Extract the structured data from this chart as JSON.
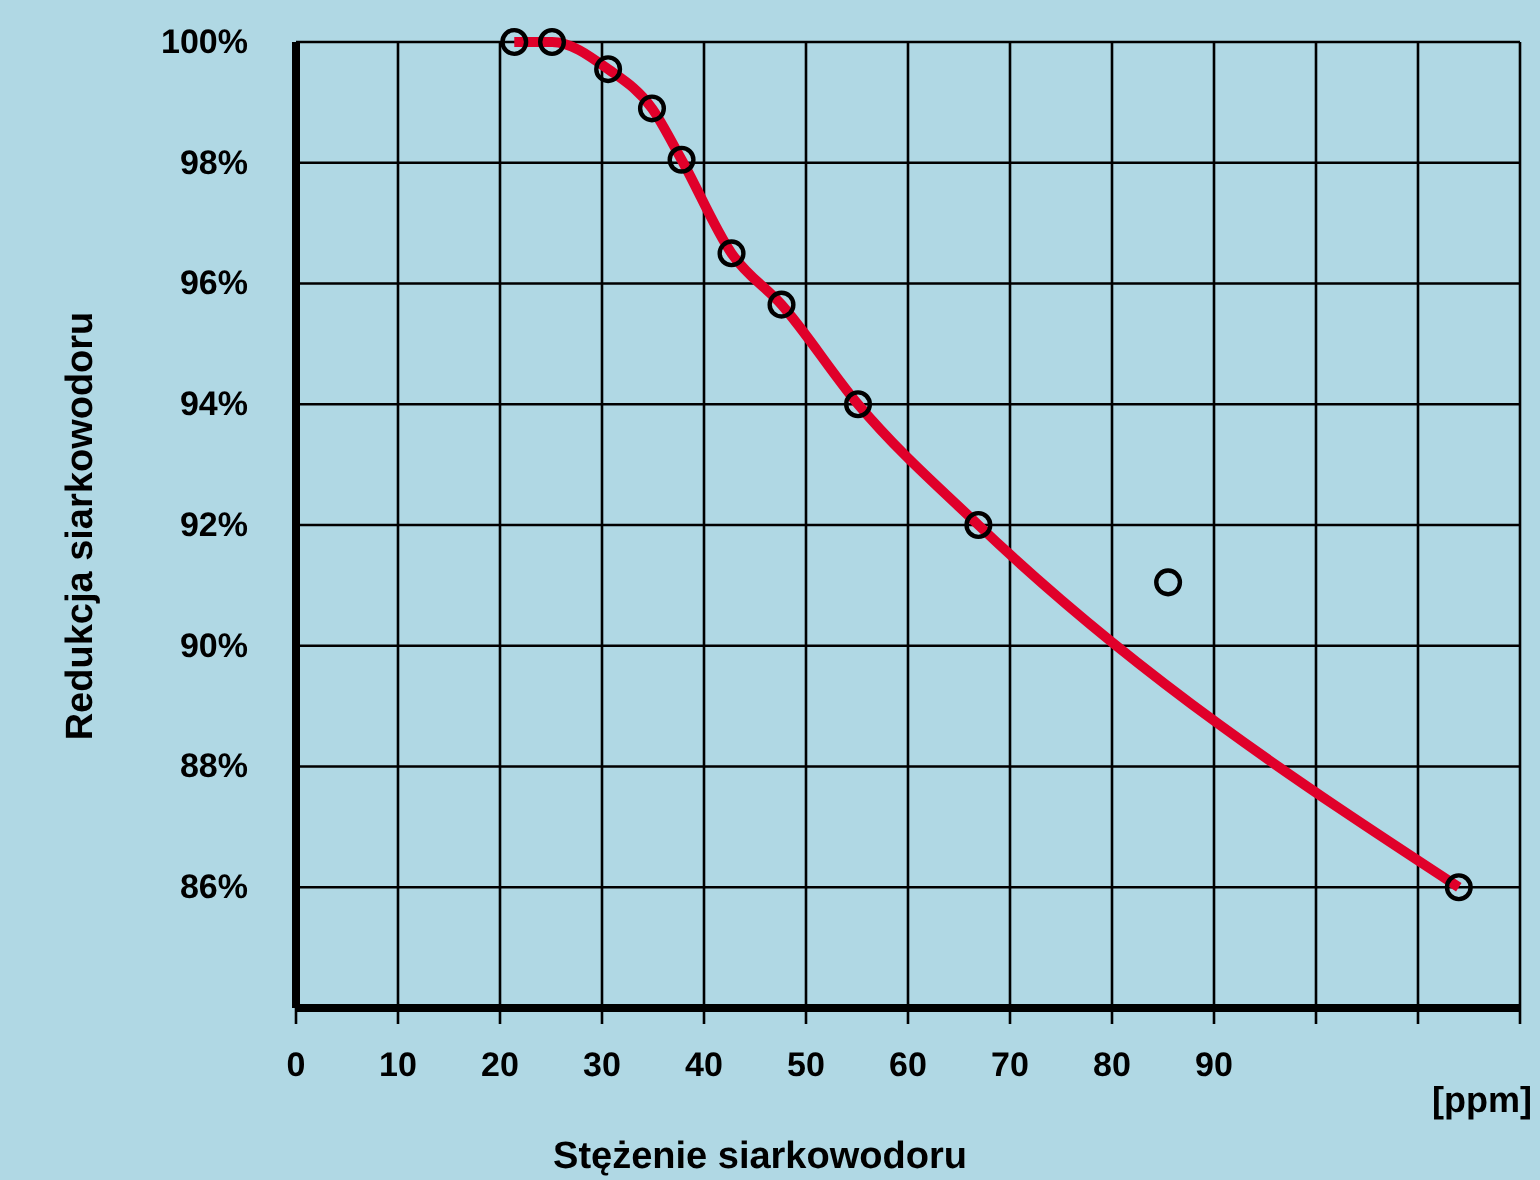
{
  "chart_data": {
    "type": "scatter",
    "xlabel": "Stężenie siarkowodoru",
    "ylabel": "Redukcja siarkowodoru",
    "annotations": [
      "[ppm]"
    ],
    "xlim": [
      0,
      120
    ],
    "xticks": [
      0,
      10,
      20,
      30,
      40,
      50,
      60,
      70,
      80,
      90,
      {
        "value": 100,
        "label": null
      },
      {
        "value": 110,
        "label": null
      },
      {
        "value": 120,
        "label": null
      }
    ],
    "ylim": [
      84,
      100
    ],
    "yticks": [
      {
        "value": 86,
        "label": "86%"
      },
      {
        "value": 88,
        "label": "88%"
      },
      {
        "value": 90,
        "label": "90%"
      },
      {
        "value": 92,
        "label": "92%"
      },
      {
        "value": 94,
        "label": "94%"
      },
      {
        "value": 96,
        "label": "96%"
      },
      {
        "value": 98,
        "label": "98%"
      },
      {
        "value": 100,
        "label": "100%"
      }
    ],
    "grid": true,
    "marker": "circle",
    "series": [
      {
        "type": "line",
        "color": "#e0002a",
        "marker": "none",
        "line_style": "solid",
        "x": [
          21.4,
          25.1,
          30.6,
          34.9,
          37.8,
          42.7,
          47.6,
          55.1,
          66.9,
          114
        ],
        "values": [
          100,
          100,
          99.55,
          98.9,
          98.05,
          96.5,
          95.65,
          94.0,
          92.0,
          86.0
        ]
      },
      {
        "color": "#000000",
        "x": [
          21.4,
          25.1,
          30.6,
          34.9,
          37.8,
          42.7,
          47.6,
          55.1,
          66.9,
          85.5,
          114
        ],
        "values": [
          100,
          100,
          99.55,
          98.9,
          98.05,
          96.5,
          95.65,
          94.0,
          92.0,
          91.05,
          86.0
        ]
      }
    ]
  }
}
